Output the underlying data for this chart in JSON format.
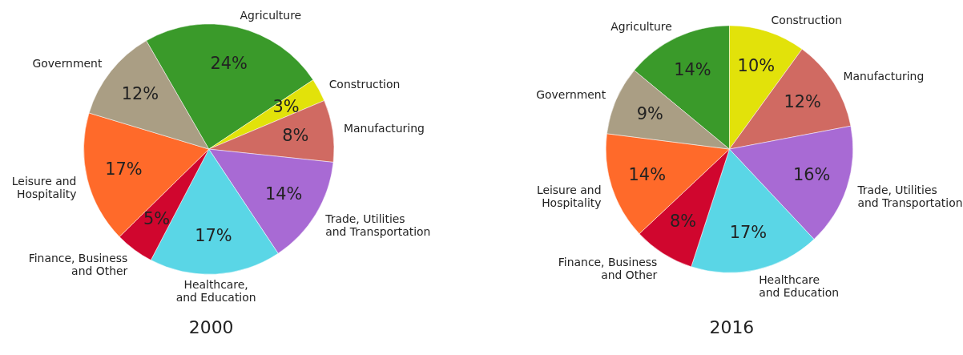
{
  "chart_data": [
    {
      "type": "pie",
      "title": "2000",
      "categories": [
        "Agriculture",
        "Construction",
        "Manufacturing",
        "Trade, Utilities\nand Transportation",
        "Healthcare,\nand Education",
        "Finance, Business\nand Other",
        "Leisure and\nHospitality",
        "Government"
      ],
      "values": [
        24,
        3,
        8,
        14,
        17,
        5,
        17,
        12
      ],
      "value_labels": [
        "24%",
        "3%",
        "8%",
        "14%",
        "17%",
        "5%",
        "17%",
        "12%"
      ],
      "colors": [
        "#3a9a2a",
        "#e2e20a",
        "#d06a62",
        "#a86ad4",
        "#5ad6e6",
        "#d0062e",
        "#ff6a2a",
        "#aa9e84"
      ]
    },
    {
      "type": "pie",
      "title": "2016",
      "categories": [
        "Agriculture",
        "Construction",
        "Manufacturing",
        "Trade, Utilities\nand Transportation",
        "Healthcare\nand Education",
        "Finance, Business\nand Other",
        "Leisure and\nHospitality",
        "Government"
      ],
      "values": [
        14,
        10,
        12,
        16,
        17,
        8,
        14,
        9
      ],
      "value_labels": [
        "14%",
        "10%",
        "12%",
        "16%",
        "17%",
        "8%",
        "14%",
        "9%"
      ],
      "colors": [
        "#3a9a2a",
        "#e2e20a",
        "#d06a62",
        "#a86ad4",
        "#5ad6e6",
        "#d0062e",
        "#ff6a2a",
        "#aa9e84"
      ]
    }
  ]
}
